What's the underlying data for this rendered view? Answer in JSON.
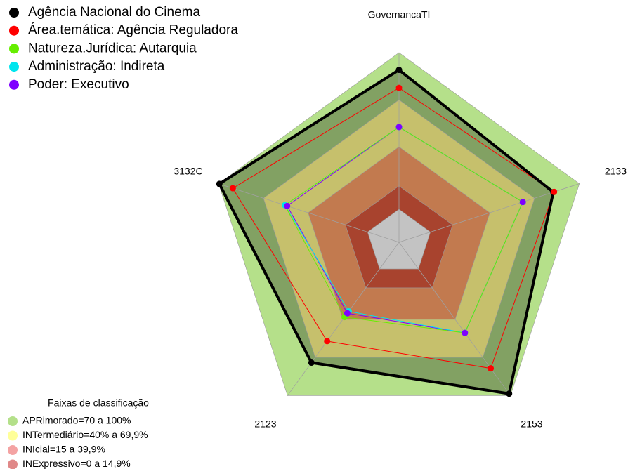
{
  "chart_data": {
    "type": "radar",
    "categories": [
      "GovernancaTI",
      "2133",
      "2153",
      "2123",
      "3132C"
    ],
    "rlim": [
      0,
      100
    ],
    "series": [
      {
        "name": "Agência Nacional do Cinema",
        "color": "#000000",
        "filled": true,
        "values": [
          89,
          82.5,
          98.5,
          74,
          99.5
        ]
      },
      {
        "name": "Área.temática: Agência Reguladora",
        "color": "#ff0000",
        "values": [
          77.5,
          83,
          78.5,
          57,
          90.5
        ]
      },
      {
        "name": "Natureza.Jurídica: Autarquia",
        "color": "#66ee00",
        "values": [
          52.5,
          62,
          50.5,
          38,
          55.5
        ]
      },
      {
        "name": "Administração: Indireta",
        "color": "#00e5ee",
        "values": [
          52.5,
          62,
          50.5,
          33.5,
          55.5
        ]
      },
      {
        "name": "Poder: Executivo",
        "color": "#7f00ff",
        "values": [
          52.5,
          62,
          50.5,
          35,
          54
        ]
      }
    ],
    "band_legend_title": "Faixas de classificação",
    "bands": [
      {
        "label": "APRimorado=70 a 100%",
        "color": "#b4e08a",
        "fill": "#b5e08a",
        "from": 70,
        "to": 100
      },
      {
        "label": "INTermediário=40% a 69,9%",
        "color": "#ffff99",
        "fill": "#c6c06c",
        "from": 40,
        "to": 69.9
      },
      {
        "label": "INIcial=15 a 39,9%",
        "color": "#f4a3a3",
        "fill": "#c27a4f",
        "from": 15,
        "to": 39.9
      },
      {
        "label": "INExpressivo=0 a 14,9%",
        "color": "#e08888",
        "fill": "#a8432e",
        "from": 0,
        "to": 14.9
      }
    ]
  }
}
